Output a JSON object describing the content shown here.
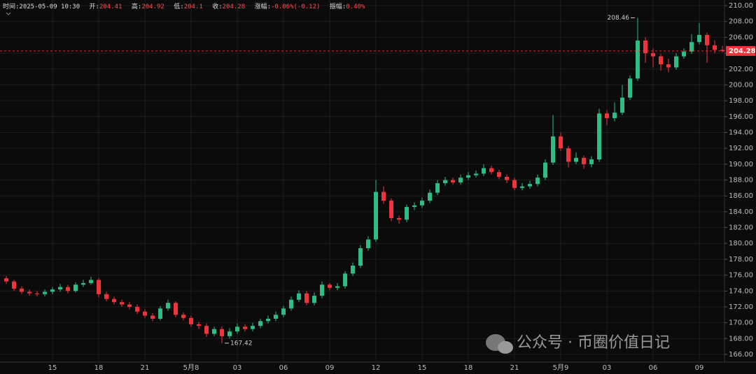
{
  "header": {
    "time_label": "时间:",
    "time": "2025-05-09 10:30",
    "open_label": "开:",
    "high_label": "高:",
    "low_label": "低:",
    "close_label": "收:",
    "change_label": "涨幅:",
    "change": "-0.06%(-0.12)",
    "amplitude_label": "振幅:",
    "amplitude": "0.40%"
  },
  "watermark": "公众号 · 币圈价值日记",
  "chart_data": {
    "type": "candlestick",
    "categories": [
      null,
      null,
      null,
      null,
      null,
      null,
      "15",
      null,
      null,
      null,
      null,
      null,
      "18",
      null,
      null,
      null,
      null,
      null,
      "21",
      null,
      null,
      null,
      null,
      null,
      "5月8",
      null,
      null,
      null,
      null,
      null,
      "03",
      null,
      null,
      null,
      null,
      null,
      "06",
      null,
      null,
      null,
      null,
      null,
      "09",
      null,
      null,
      null,
      null,
      null,
      "12",
      null,
      null,
      null,
      null,
      null,
      "15",
      null,
      null,
      null,
      null,
      null,
      "18",
      null,
      null,
      null,
      null,
      null,
      "21",
      null,
      null,
      null,
      null,
      null,
      "5月9",
      null,
      null,
      null,
      null,
      null,
      "03",
      null,
      null,
      null,
      null,
      null,
      "06",
      null,
      null,
      null,
      null,
      null,
      "09",
      null,
      null,
      null
    ],
    "open": [
      175.6,
      175.2,
      174.3,
      173.9,
      173.7,
      173.6,
      173.9,
      174.2,
      174.5,
      174.0,
      174.8,
      175.0,
      175.4,
      173.6,
      173.0,
      172.6,
      172.3,
      172.0,
      171.4,
      170.9,
      170.5,
      171.8,
      172.5,
      171.0,
      170.6,
      169.8,
      169.6,
      168.6,
      169.2,
      168.3,
      168.9,
      169.5,
      169.2,
      169.6,
      170.2,
      170.5,
      171.0,
      171.8,
      172.9,
      173.7,
      172.5,
      173.4,
      174.8,
      174.4,
      174.6,
      176.2,
      177.2,
      179.4,
      180.5,
      186.5,
      185.4,
      183.2,
      183.0,
      184.6,
      184.8,
      185.4,
      186.4,
      187.6,
      188.0,
      187.7,
      188.3,
      188.6,
      188.8,
      189.5,
      189.0,
      188.4,
      188.0,
      187.0,
      187.2,
      187.5,
      188.3,
      190.2,
      193.5,
      192.0,
      190.3,
      190.8,
      190.0,
      190.6,
      196.4,
      195.8,
      196.5,
      198.4,
      200.8,
      205.6,
      204.0,
      203.6,
      202.6,
      202.2,
      203.6,
      204.2,
      205.4,
      206.3,
      205.0,
      204.41
    ],
    "high": [
      175.9,
      175.4,
      174.6,
      174.2,
      174.0,
      174.2,
      174.5,
      174.9,
      174.8,
      175.1,
      175.4,
      175.8,
      175.6,
      173.9,
      173.3,
      172.9,
      172.6,
      172.3,
      171.7,
      171.2,
      172.1,
      172.9,
      172.7,
      171.3,
      170.9,
      170.1,
      169.9,
      169.5,
      169.5,
      169.3,
      169.9,
      169.8,
      170.0,
      170.5,
      170.9,
      171.4,
      172.1,
      173.3,
      174.1,
      174.0,
      173.8,
      175.2,
      175.0,
      175.0,
      176.5,
      177.6,
      179.8,
      180.9,
      188.0,
      187.2,
      185.7,
      183.5,
      184.9,
      185.2,
      185.8,
      186.8,
      188.0,
      188.4,
      188.3,
      188.7,
      189.0,
      189.2,
      190.0,
      189.8,
      189.3,
      188.7,
      188.3,
      187.6,
      187.9,
      188.7,
      190.6,
      196.2,
      194.0,
      192.3,
      191.5,
      191.1,
      191.0,
      197.0,
      196.8,
      197.8,
      200.0,
      201.2,
      208.46,
      206.0,
      204.6,
      203.9,
      203.3,
      204.0,
      204.6,
      206.4,
      207.8,
      206.6,
      205.6,
      204.92
    ],
    "low": [
      174.9,
      174.0,
      173.6,
      173.4,
      173.3,
      173.3,
      173.6,
      173.9,
      173.7,
      173.8,
      174.5,
      174.8,
      173.2,
      172.7,
      172.3,
      172.0,
      171.7,
      171.1,
      170.6,
      170.2,
      170.3,
      171.5,
      170.7,
      170.3,
      169.5,
      169.2,
      168.2,
      168.3,
      167.42,
      168.0,
      168.6,
      168.9,
      168.9,
      169.3,
      169.9,
      170.2,
      170.7,
      171.5,
      172.6,
      172.2,
      172.2,
      173.1,
      174.1,
      174.1,
      174.3,
      175.9,
      176.9,
      179.1,
      180.2,
      185.0,
      182.8,
      182.5,
      182.7,
      184.2,
      184.5,
      185.1,
      186.1,
      187.3,
      187.4,
      187.4,
      188.0,
      188.3,
      188.5,
      188.7,
      188.1,
      187.6,
      186.7,
      186.7,
      186.9,
      187.2,
      188.0,
      189.9,
      191.7,
      189.6,
      190.0,
      189.4,
      189.6,
      190.3,
      194.9,
      195.4,
      196.2,
      198.1,
      200.5,
      202.8,
      202.2,
      201.8,
      201.6,
      201.9,
      203.3,
      203.9,
      205.1,
      202.8,
      204.0,
      204.1
    ],
    "close": [
      175.2,
      174.3,
      173.9,
      173.7,
      173.6,
      173.9,
      174.2,
      174.5,
      174.0,
      174.8,
      175.0,
      175.4,
      173.6,
      173.0,
      172.6,
      172.3,
      172.0,
      171.4,
      170.9,
      170.5,
      171.8,
      172.5,
      171.0,
      170.6,
      169.8,
      169.6,
      168.6,
      169.2,
      168.3,
      168.9,
      169.5,
      169.2,
      169.6,
      170.2,
      170.5,
      171.0,
      171.8,
      172.9,
      173.7,
      172.5,
      173.4,
      174.8,
      174.4,
      174.6,
      176.2,
      177.2,
      179.4,
      180.5,
      186.5,
      185.4,
      183.2,
      183.0,
      184.6,
      184.8,
      185.4,
      186.4,
      187.6,
      188.0,
      187.7,
      188.3,
      188.6,
      188.8,
      189.5,
      189.0,
      188.4,
      188.0,
      187.0,
      187.2,
      187.5,
      188.3,
      190.2,
      193.5,
      192.0,
      190.3,
      190.8,
      190.0,
      190.6,
      196.4,
      195.8,
      196.5,
      198.4,
      200.8,
      205.6,
      204.0,
      203.6,
      202.6,
      202.2,
      203.6,
      204.2,
      205.4,
      206.3,
      205.0,
      204.41,
      204.28
    ],
    "up_color": "#2ebd85",
    "down_color": "#f0343c",
    "ylim": [
      165.03,
      210.71
    ],
    "yticks": [
      {
        "value": 166,
        "label": "166.00"
      },
      {
        "value": 168,
        "label": "168.00"
      },
      {
        "value": 170,
        "label": "170.00"
      },
      {
        "value": 172,
        "label": "172.00"
      },
      {
        "value": 174,
        "label": "174.00"
      },
      {
        "value": 176,
        "label": "176.00"
      },
      {
        "value": 178,
        "label": "178.00"
      },
      {
        "value": 180,
        "label": "180.00"
      },
      {
        "value": 182,
        "label": "182.00"
      },
      {
        "value": 184,
        "label": "184.00"
      },
      {
        "value": 186,
        "label": "186.00"
      },
      {
        "value": 188,
        "label": "188.00"
      },
      {
        "value": 190,
        "label": "190.00"
      },
      {
        "value": 192,
        "label": "192.00"
      },
      {
        "value": 194,
        "label": "194.00"
      },
      {
        "value": 196,
        "label": "196.00"
      },
      {
        "value": 198,
        "label": "198.00"
      },
      {
        "value": 200,
        "label": "200.00"
      },
      {
        "value": 202,
        "label": "202.00"
      },
      {
        "value": 204,
        "label": "204.00"
      },
      {
        "value": 206,
        "label": "206.00"
      },
      {
        "value": 208,
        "label": "208.00"
      },
      {
        "value": 210,
        "label": "210.00"
      }
    ],
    "grid": true
  }
}
